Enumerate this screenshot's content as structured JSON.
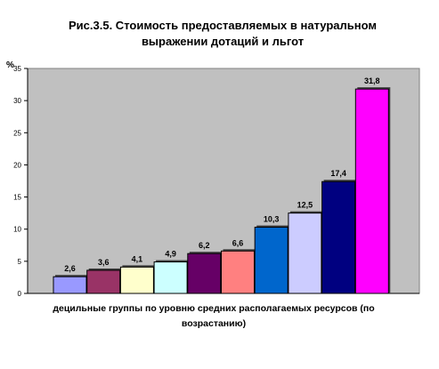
{
  "chart_data": {
    "type": "bar",
    "title_line1": "Рис.3.5. Стоимость предоставляемых в натуральном",
    "title_line2": "выражении дотаций и льгот",
    "ylabel": "%",
    "xlabel_line1": "децильные группы по уровню средних располагаемых ресурсов (по",
    "xlabel_line2": "возрастанию)",
    "ylim": [
      0,
      35
    ],
    "yticks": [
      0,
      5,
      10,
      15,
      20,
      25,
      30,
      35
    ],
    "grid": false,
    "legend": "none",
    "plot_background": "#c0c0c0",
    "values": [
      2.6,
      3.6,
      4.1,
      4.9,
      6.2,
      6.6,
      10.3,
      12.5,
      17.4,
      31.8
    ],
    "data_labels": [
      "2,6",
      "3,6",
      "4,1",
      "4,9",
      "6,2",
      "6,6",
      "10,3",
      "12,5",
      "17,4",
      "31,8"
    ],
    "bar_colors": [
      "#9999ff",
      "#993366",
      "#ffffcc",
      "#ccffff",
      "#660066",
      "#ff8080",
      "#0066cc",
      "#ccccff",
      "#000080",
      "#ff00ff"
    ]
  }
}
